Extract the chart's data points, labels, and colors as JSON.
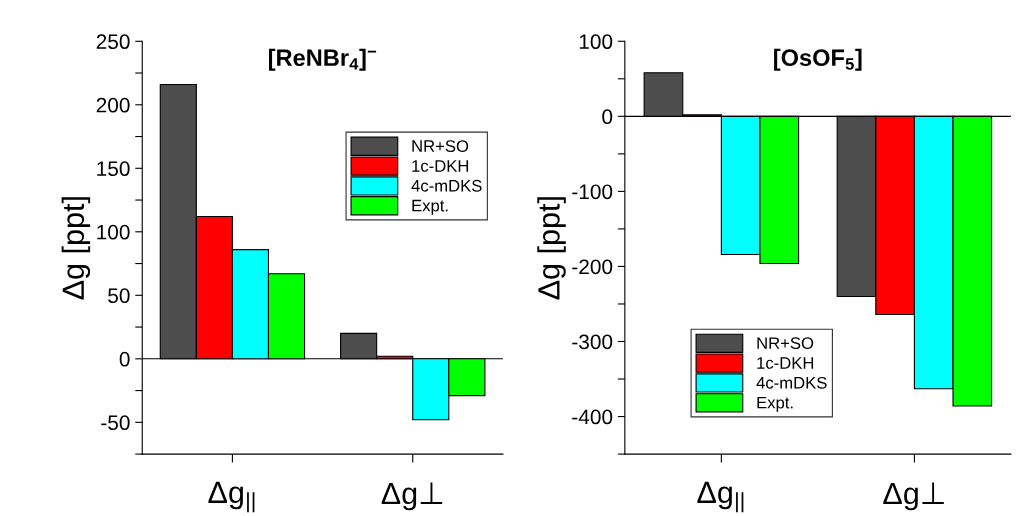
{
  "chart_data": [
    {
      "type": "bar",
      "title": "[ReNBr$_{4}$]$^{−}$",
      "ylabel": "Δg [ppt]",
      "categories": [
        "Δg$_{||}$",
        "Δg⊥"
      ],
      "series": [
        {
          "name": "NR+SO",
          "color": "#4d4d4d",
          "values": [
            216,
            20
          ]
        },
        {
          "name": "1c-DKH",
          "color": "#ff0000",
          "values": [
            112,
            2
          ]
        },
        {
          "name": "4c-mDKS",
          "color": "#00ffff",
          "values": [
            86,
            -48
          ]
        },
        {
          "name": "Expt.",
          "color": "#00ff00",
          "values": [
            67,
            -29
          ]
        }
      ],
      "ylim": [
        -75,
        250
      ],
      "yticks": [
        {
          "value": -75,
          "label": null
        },
        -50,
        {
          "value": -25,
          "label": null
        },
        0,
        {
          "value": 25,
          "label": null
        },
        50,
        {
          "value": 75,
          "label": null
        },
        100,
        {
          "value": 125,
          "label": null
        },
        150,
        {
          "value": 175,
          "label": null
        },
        200,
        {
          "value": 225,
          "label": null
        },
        250
      ],
      "ref_lines": [
        {
          "axis": "y",
          "value": 0,
          "color": "#000000"
        }
      ],
      "grid": false,
      "legend": "top right"
    },
    {
      "type": "bar",
      "title": "[OsOF$_{5}$]",
      "ylabel": "Δg [ppt]",
      "categories": [
        "Δg$_{||}$",
        "Δg⊥"
      ],
      "series": [
        {
          "name": "NR+SO",
          "color": "#4d4d4d",
          "values": [
            58,
            -240
          ]
        },
        {
          "name": "1c-DKH",
          "color": "#ff0000",
          "values": [
            2,
            -264
          ]
        },
        {
          "name": "4c-mDKS",
          "color": "#00ffff",
          "values": [
            -184,
            -363
          ]
        },
        {
          "name": "Expt.",
          "color": "#00ff00",
          "values": [
            -196,
            -386
          ]
        }
      ],
      "ylim": [
        -450,
        100
      ],
      "yticks": [
        {
          "value": -450,
          "label": null
        },
        -400,
        {
          "value": -350,
          "label": null
        },
        -300,
        {
          "value": -250,
          "label": null
        },
        -200,
        {
          "value": -150,
          "label": null
        },
        -100,
        {
          "value": -50,
          "label": null
        },
        0,
        {
          "value": 50,
          "label": null
        },
        100
      ],
      "ref_lines": [
        {
          "axis": "y",
          "value": 0,
          "color": "#000000"
        }
      ],
      "grid": false,
      "legend": "bottom left"
    }
  ]
}
